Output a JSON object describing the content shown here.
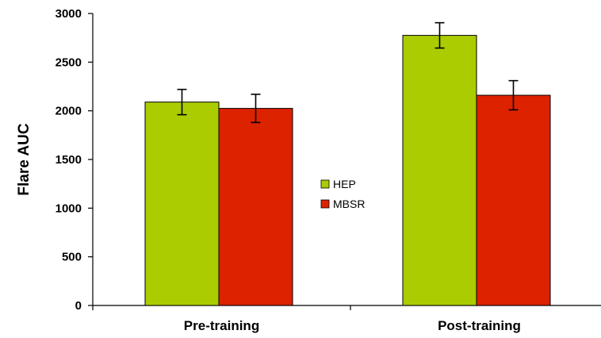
{
  "chart_data": {
    "type": "bar",
    "title": "",
    "xlabel": "",
    "ylabel": "Flare AUC",
    "categories": [
      "Pre-training",
      "Post-training"
    ],
    "series": [
      {
        "name": "HEP",
        "color": "#aacc00",
        "values": [
          2090,
          2775
        ],
        "errors": [
          130,
          130
        ]
      },
      {
        "name": "MBSR",
        "color": "#dd2200",
        "values": [
          2025,
          2160
        ],
        "errors": [
          145,
          150
        ]
      }
    ],
    "ylim": [
      0,
      3000
    ],
    "yticks": [
      0,
      500,
      1000,
      1500,
      2000,
      2500,
      3000
    ],
    "grid": false,
    "legend_position": "center"
  }
}
